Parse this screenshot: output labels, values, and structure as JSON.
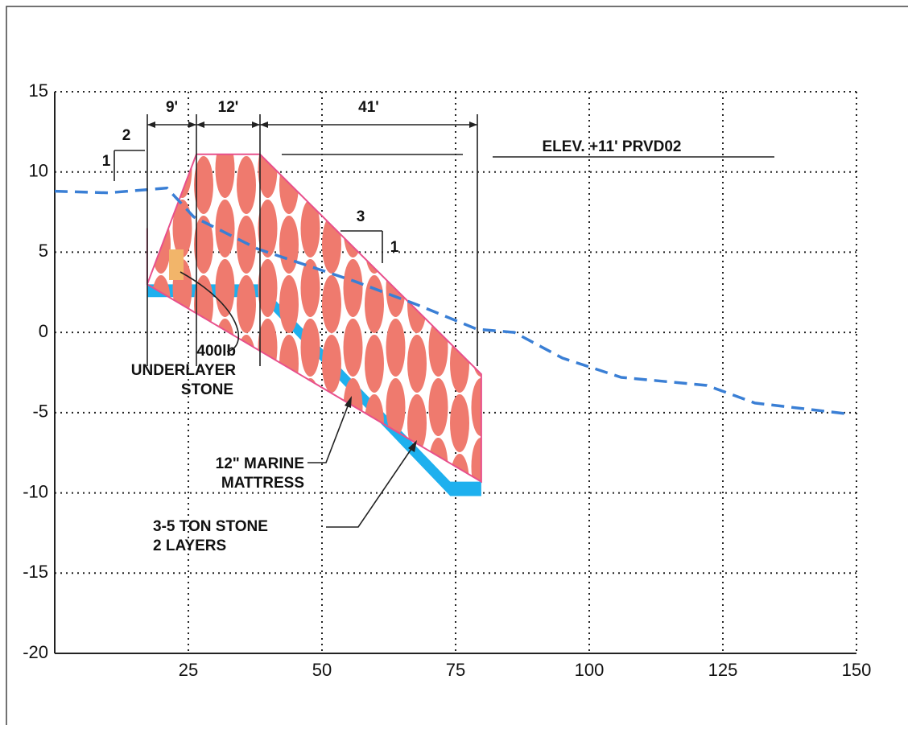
{
  "chart_data": {
    "type": "line",
    "x": [
      0,
      10,
      21,
      26,
      38,
      56,
      68,
      79,
      86,
      95,
      106,
      122,
      131,
      149
    ],
    "series": [
      {
        "color": "#3a7fd5",
        "values": [
          8.8,
          8.7,
          9.0,
          7.2,
          5.2,
          3.2,
          1.7,
          0.2,
          0,
          -1.6,
          -2.8,
          -3.3,
          -4.4,
          -5.1
        ]
      }
    ],
    "xlim": [
      0,
      150
    ],
    "xticks": [
      25,
      50,
      75,
      100,
      125,
      150
    ],
    "ylim": [
      -20,
      15
    ],
    "yticks": [
      -20,
      -15,
      -10,
      -5,
      0,
      5,
      10,
      15
    ],
    "grid": true,
    "armor_outline": {
      "color": "#e8508c",
      "fill": "#f3a39a",
      "x": [
        17.3,
        17.3,
        26.5,
        38.4,
        79.8,
        79.8,
        17.3
      ],
      "y": [
        6.5,
        3.0,
        11.1,
        11.1,
        -2.6,
        -9.3,
        3.0
      ]
    },
    "mattress": {
      "color": "#1eb0ee",
      "x": [
        17.3,
        38.4,
        74,
        79.8,
        79.8,
        74,
        38.4,
        17.3
      ],
      "y": [
        3.0,
        3.0,
        -9.3,
        -9.3,
        -10.2,
        -10.2,
        2.2,
        2.2
      ]
    },
    "dimensions": [
      "9'",
      "12'",
      "41'"
    ],
    "slopes": [
      {
        "rise": "2",
        "run": "1"
      },
      {
        "rise": "3",
        "run": "1"
      }
    ],
    "annotations": [
      {
        "lines": [
          "ELEV. +11' PRVD02"
        ]
      },
      {
        "lines": [
          "400lb",
          "UNDERLAYER",
          "STONE"
        ]
      },
      {
        "lines": [
          "12\" MARINE",
          "MATTRESS"
        ]
      },
      {
        "lines": [
          "3-5 TON STONE",
          "2 LAYERS"
        ]
      }
    ]
  }
}
